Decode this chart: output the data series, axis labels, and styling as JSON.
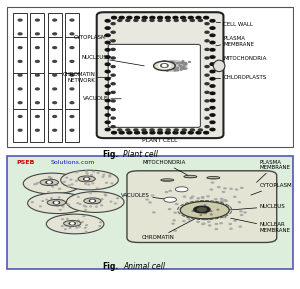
{
  "fig_width": 3.0,
  "fig_height": 2.89,
  "dpi": 100,
  "bg_top": "#f0f0ea",
  "bg_bottom": "#ddeedd",
  "border_bottom_color": "#5555bb",
  "top_caption_bold": "Fig.",
  "top_caption_italic": "Plant cell",
  "bottom_caption_bold": "Fig.",
  "bottom_caption_italic": "Animal cell",
  "watermark_pseb": "PSEB",
  "watermark_rest": "Solutions.com",
  "watermark_color_pseb": "#cc0000",
  "watermark_color_rest": "#1111cc",
  "plant_labels_left": [
    [
      "CYTOPLASM",
      3.55,
      7.2,
      4.55,
      7.8
    ],
    [
      "NUCLEUS",
      3.55,
      6.2,
      4.35,
      6.05
    ],
    [
      "CHROMATIN\nNETWORK",
      3.1,
      4.9,
      4.35,
      5.2
    ],
    [
      "VACUOLE",
      3.55,
      3.5,
      4.55,
      3.8
    ]
  ],
  "plant_labels_right": [
    [
      "CELL WALL",
      8.55,
      8.6,
      7.95,
      8.9
    ],
    [
      "PLASMA\nMEMBRANE",
      8.55,
      7.4,
      7.75,
      7.2
    ],
    [
      "MITOCHONDRIA",
      8.55,
      6.3,
      7.6,
      6.1
    ],
    [
      "CHLOROPLASTS",
      8.55,
      5.1,
      7.6,
      5.0
    ]
  ],
  "plant_label_bottom": "PLANT CELL"
}
